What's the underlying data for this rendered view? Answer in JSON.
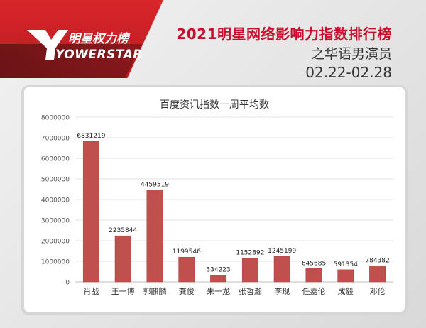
{
  "header": {
    "brand_cn": "明星权力榜",
    "brand_en": "YOWERSTAR",
    "title": "2021明星网络影响力指数排行榜",
    "subtitle": "之华语男演员",
    "date_range": "02.22-02.28"
  },
  "colors": {
    "brand_red": "#c8102e",
    "bar": "#c0504d",
    "bar_edge": "#a8403d"
  },
  "chart_data": {
    "type": "bar",
    "title": "百度资讯指数一周平均数",
    "categories": [
      "肖战",
      "王一博",
      "郭麒麟",
      "龚俊",
      "朱一龙",
      "张哲瀚",
      "李现",
      "任嘉伦",
      "成毅",
      "邓伦"
    ],
    "values": [
      6831219,
      2235844,
      4459519,
      1199546,
      334223,
      1152892,
      1245199,
      645685,
      591354,
      784382
    ],
    "ylim": [
      0,
      8000000
    ],
    "yticks": [
      "0",
      "1000000",
      "2000000",
      "3000000",
      "4000000",
      "5000000",
      "6000000",
      "7000000",
      "8000000"
    ],
    "grid": true,
    "xlabel": "",
    "ylabel": ""
  }
}
